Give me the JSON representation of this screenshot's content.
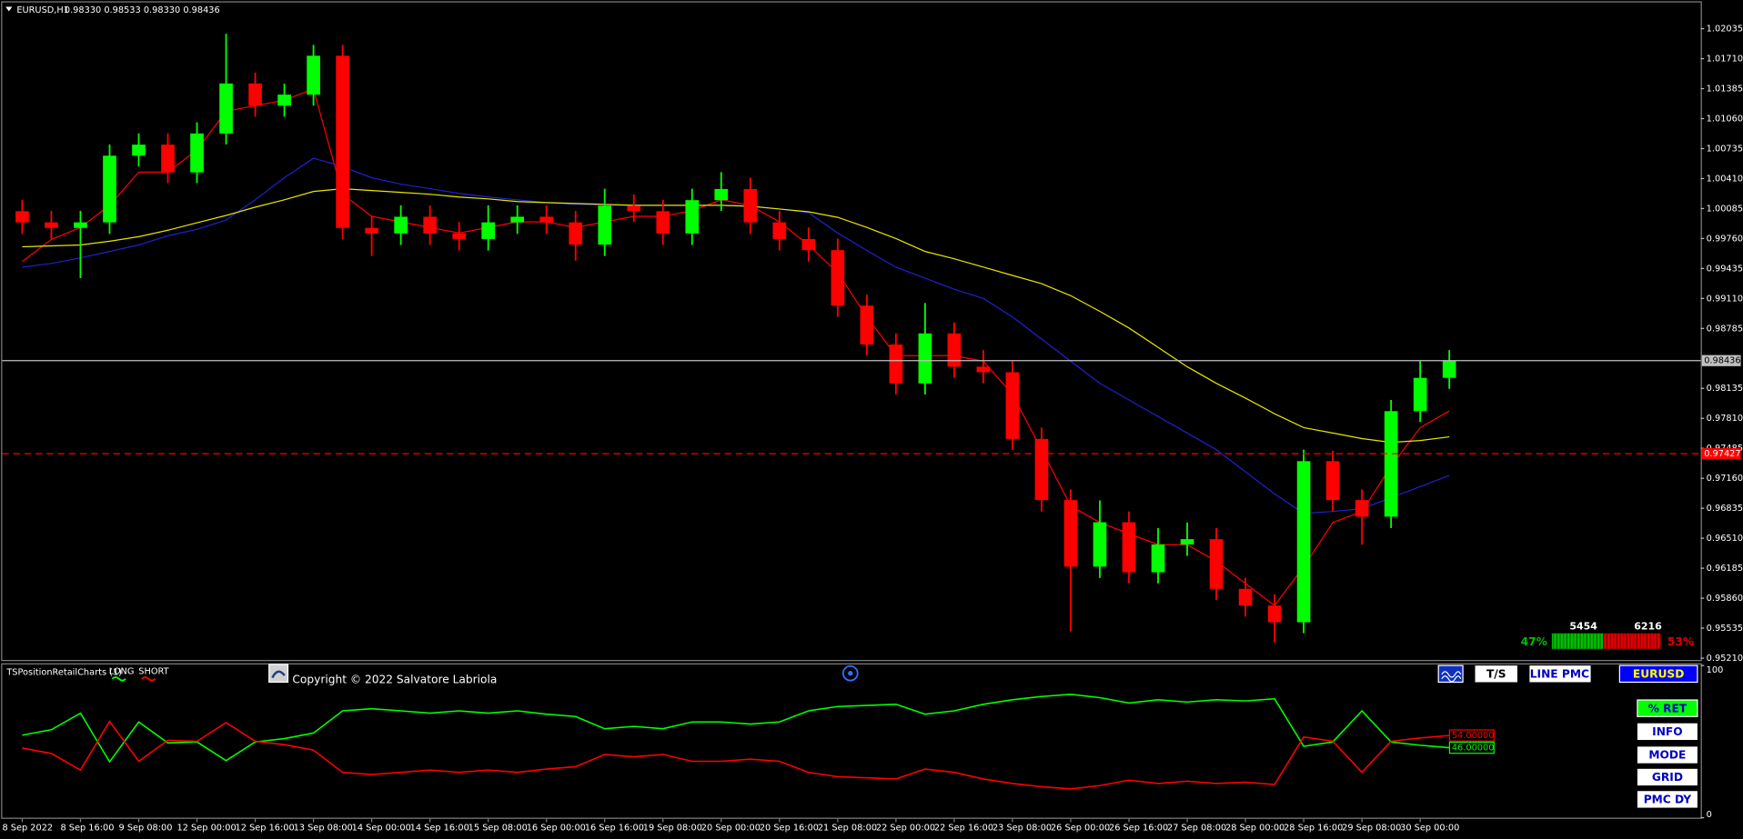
{
  "chart_data": [
    {
      "type": "candlestick",
      "title": "EURUSD,H1",
      "quote": "0.98330 0.98533 0.98330 0.98436",
      "categories": [
        "8 Sep 2022",
        null,
        "8 Sep 16:00",
        null,
        "9 Sep 08:00",
        null,
        "12 Sep 00:00",
        null,
        "12 Sep 16:00",
        null,
        "13 Sep 08:00",
        null,
        "14 Sep 00:00",
        null,
        "14 Sep 16:00",
        null,
        "15 Sep 08:00",
        null,
        "16 Sep 00:00",
        null,
        "16 Sep 16:00",
        null,
        "19 Sep 08:00",
        null,
        "20 Sep 00:00",
        null,
        "20 Sep 16:00",
        null,
        "21 Sep 08:00",
        null,
        "22 Sep 00:00",
        null,
        "22 Sep 16:00",
        null,
        "23 Sep 08:00",
        null,
        "26 Sep 00:00",
        null,
        "26 Sep 16:00",
        null,
        "27 Sep 08:00",
        null,
        "28 Sep 00:00",
        null,
        "28 Sep 16:00",
        null,
        "29 Sep 08:00",
        null,
        "30 Sep 00:00",
        null
      ],
      "open": [
        1.00056,
        0.99935,
        0.99875,
        0.99935,
        1.00658,
        1.00778,
        1.00477,
        1.00899,
        1.01441,
        1.012,
        1.0132,
        1.01742,
        0.99875,
        0.99815,
        0.99996,
        0.99815,
        0.99755,
        0.99935,
        0.99996,
        0.99935,
        0.99694,
        1.00116,
        1.00056,
        0.99815,
        1.00176,
        1.00297,
        0.99935,
        0.99755,
        0.99634,
        0.99032,
        0.98611,
        0.98189,
        0.98731,
        0.9837,
        0.9831,
        0.97587,
        0.96924,
        0.96202,
        0.96683,
        0.96141,
        0.96443,
        0.965,
        0.95961,
        0.9578,
        0.95599,
        0.97346,
        0.96924,
        0.96744,
        0.97888,
        0.98249
      ],
      "high": [
        1.0018,
        1.0006,
        1.0006,
        1.0078,
        1.009,
        1.009,
        1.0102,
        1.0198,
        1.0156,
        1.0144,
        1.0186,
        1.0186,
        1.0,
        1.0012,
        1.0012,
        0.9994,
        1.0012,
        1.0012,
        1.0012,
        1.0006,
        1.003,
        1.0024,
        1.0018,
        1.003,
        1.0048,
        1.0042,
        1.0006,
        0.9988,
        0.9976,
        0.9915,
        0.9873,
        0.9906,
        0.9885,
        0.9855,
        0.9843,
        0.9771,
        0.9704,
        0.9692,
        0.968,
        0.9662,
        0.9668,
        0.9662,
        0.9608,
        0.959,
        0.9747,
        0.9746,
        0.9704,
        0.9801,
        0.9843,
        0.9855
      ],
      "low": [
        0.9981,
        0.9975,
        0.9933,
        0.9981,
        1.0054,
        1.0036,
        1.0036,
        1.0078,
        1.0108,
        1.0108,
        1.012,
        0.9975,
        0.9957,
        0.9969,
        0.9969,
        0.9963,
        0.9963,
        0.9981,
        0.9981,
        0.9952,
        0.9957,
        0.9994,
        0.9969,
        0.9969,
        1.0006,
        0.9981,
        0.9963,
        0.9951,
        0.9891,
        0.9849,
        0.9807,
        0.9807,
        0.9825,
        0.9819,
        0.9747,
        0.968,
        0.955,
        0.9608,
        0.9602,
        0.9602,
        0.9632,
        0.9584,
        0.9566,
        0.9538,
        0.9548,
        0.968,
        0.9644,
        0.9662,
        0.9777,
        0.9813
      ],
      "close": [
        0.99935,
        0.99875,
        0.99935,
        1.00658,
        1.00778,
        1.00477,
        1.00899,
        1.01441,
        1.012,
        1.0132,
        1.01742,
        0.99875,
        0.99815,
        0.99996,
        0.99815,
        0.99755,
        0.99935,
        0.99996,
        0.99935,
        0.99694,
        1.00116,
        1.00056,
        0.99815,
        1.00176,
        1.00297,
        0.99935,
        0.99755,
        0.99634,
        0.99032,
        0.98611,
        0.98189,
        0.98731,
        0.9837,
        0.9831,
        0.97587,
        0.96924,
        0.96202,
        0.96683,
        0.96141,
        0.96443,
        0.965,
        0.95961,
        0.9578,
        0.95599,
        0.97346,
        0.96924,
        0.96744,
        0.97888,
        0.98249,
        0.98436
      ],
      "up_color": "#00ff00",
      "down_color": "#ff0000",
      "overlays": [
        {
          "color": "#ff0000",
          "values": [
            0.9951,
            0.9975,
            0.9988,
            1.0012,
            1.0048,
            1.0048,
            1.0072,
            1.0114,
            1.012,
            1.0126,
            1.0138,
            1.0024,
            1.0,
            0.9994,
            0.9988,
            0.9982,
            0.9988,
            0.9994,
            0.9994,
            0.9988,
            0.9994,
            1.0,
            1.0,
            1.0006,
            1.0018,
            1.0012,
            0.9994,
            0.9969,
            0.9939,
            0.9891,
            0.9849,
            0.9849,
            0.9849,
            0.9843,
            0.9807,
            0.9747,
            0.9686,
            0.9668,
            0.9656,
            0.9644,
            0.9644,
            0.9626,
            0.9602,
            0.9578,
            0.962,
            0.9668,
            0.968,
            0.9729,
            0.9771,
            0.9789
          ]
        },
        {
          "color": "#2020d0",
          "values": [
            0.9945,
            0.9949,
            0.9955,
            0.9962,
            0.9969,
            0.9979,
            0.9986,
            0.9996,
            1.0018,
            1.0042,
            1.0063,
            1.0054,
            1.0042,
            1.0035,
            1.003,
            1.0025,
            1.0021,
            1.0018,
            1.0015,
            1.0013,
            1.0012,
            1.0012,
            1.0012,
            1.0012,
            1.0012,
            1.0011,
            1.0008,
            1.0004,
            0.9982,
            0.9963,
            0.9945,
            0.9933,
            0.9921,
            0.9911,
            0.9891,
            0.9867,
            0.9843,
            0.9819,
            0.9801,
            0.9783,
            0.9765,
            0.9747,
            0.9723,
            0.9699,
            0.9678,
            0.968,
            0.9683,
            0.9695,
            0.9707,
            0.9719
          ]
        },
        {
          "color": "#e6e600",
          "values": [
            0.9967,
            0.9968,
            0.9969,
            0.9973,
            0.9978,
            0.9985,
            0.9993,
            1.0001,
            1.001,
            1.0018,
            1.0027,
            1.003,
            1.0028,
            1.0026,
            1.0024,
            1.0021,
            1.0019,
            1.0016,
            1.0015,
            1.0014,
            1.0013,
            1.0012,
            1.0012,
            1.0012,
            1.0012,
            1.0011,
            1.0008,
            1.0005,
            0.9999,
            0.9988,
            0.9976,
            0.9962,
            0.9954,
            0.9945,
            0.9936,
            0.9927,
            0.9914,
            0.9897,
            0.9879,
            0.9858,
            0.9837,
            0.9819,
            0.9803,
            0.9786,
            0.9771,
            0.9765,
            0.9759,
            0.9755,
            0.9757,
            0.9761
          ]
        }
      ],
      "price_lines": [
        {
          "value": 0.98436,
          "color": "#c0c0c0",
          "dashed": false
        },
        {
          "value": 0.97427,
          "color": "#ff0000",
          "dashed": true
        }
      ],
      "ylim": [
        0.9519,
        1.0232
      ],
      "yticks": [
        {
          "value": 1.02035,
          "label": "1.02035"
        },
        {
          "value": 1.0171,
          "label": "1.01710"
        },
        {
          "value": 1.01385,
          "label": "1.01385"
        },
        {
          "value": 1.0106,
          "label": "1.01060"
        },
        {
          "value": 1.00735,
          "label": "1.00735"
        },
        {
          "value": 1.0041,
          "label": "1.00410"
        },
        {
          "value": 1.00085,
          "label": "1.00085"
        },
        {
          "value": 0.9976,
          "label": "0.99760"
        },
        {
          "value": 0.99435,
          "label": "0.99435"
        },
        {
          "value": 0.9911,
          "label": "0.99110"
        },
        {
          "value": 0.98785,
          "label": "0.98785"
        },
        {
          "value": 0.98135,
          "label": "0.98135"
        },
        {
          "value": 0.9781,
          "label": "0.97810"
        },
        {
          "value": 0.97485,
          "label": "0.97485"
        },
        {
          "value": 0.9716,
          "label": "0.97160"
        },
        {
          "value": 0.96835,
          "label": "0.96835"
        },
        {
          "value": 0.9651,
          "label": "0.96510"
        },
        {
          "value": 0.96185,
          "label": "0.96185"
        },
        {
          "value": 0.9586,
          "label": "0.95860"
        },
        {
          "value": 0.95535,
          "label": "0.95535"
        },
        {
          "value": 0.9521,
          "label": "0.95210"
        }
      ],
      "grid": false
    },
    {
      "type": "line",
      "title": "TSPositionRetailCharts (1)",
      "series": [
        {
          "name": "LONG",
          "color": "#00ff00",
          "value_label": "46.00000",
          "values": [
            54.2,
            57.8,
            68.7,
            36.7,
            62.9,
            49.1,
            49.8,
            37.5,
            49.8,
            52.0,
            55.6,
            70.2,
            71.6,
            70.2,
            68.7,
            70.2,
            68.7,
            70.2,
            68.0,
            66.5,
            58.5,
            60.0,
            58.5,
            62.9,
            62.9,
            61.5,
            62.9,
            70.2,
            73.1,
            73.8,
            74.5,
            68.0,
            70.2,
            74.5,
            77.5,
            79.6,
            81.1,
            78.9,
            75.3,
            77.5,
            76.0,
            77.5,
            76.7,
            78.2,
            46.9,
            49.8,
            70.2,
            49.8,
            47.6,
            46
          ]
        },
        {
          "name": "SHORT",
          "color": "#ff0000",
          "value_label": "54.00000",
          "values": [
            45.8,
            42.2,
            31.3,
            63.3,
            37.1,
            50.9,
            50.2,
            62.5,
            50.2,
            48.0,
            44.4,
            29.8,
            28.4,
            29.8,
            31.3,
            29.8,
            31.3,
            29.8,
            32.0,
            33.5,
            41.5,
            40.0,
            41.5,
            37.1,
            37.1,
            38.5,
            37.1,
            29.8,
            26.9,
            26.2,
            25.5,
            32.0,
            29.8,
            25.5,
            22.5,
            20.4,
            18.9,
            21.1,
            24.7,
            22.5,
            24.0,
            22.5,
            23.3,
            21.8,
            53.1,
            50.2,
            29.8,
            50.2,
            52.4,
            54
          ]
        }
      ],
      "ylim": [
        0,
        100
      ],
      "yticks": [
        0,
        100
      ]
    }
  ],
  "sentiment": {
    "counts": [
      5454,
      6216
    ],
    "values": [
      47,
      53
    ],
    "value_labels": [
      "47%",
      "53%"
    ],
    "colors": [
      "#00c000",
      "#e00000"
    ]
  },
  "copyright": "Copyright © 2022 Salvatore Labriola",
  "buttons": [
    "T/S",
    "LINE PMC",
    "EURUSD",
    "% RET",
    "INFO",
    "MODE",
    "GRID",
    "PMC DY"
  ]
}
